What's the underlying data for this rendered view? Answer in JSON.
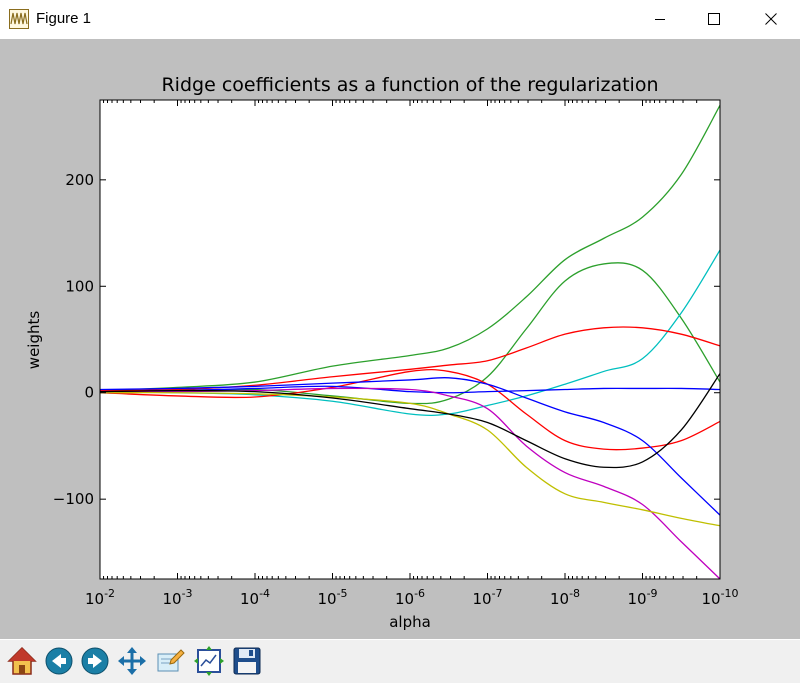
{
  "window": {
    "title": "Figure 1",
    "icons": {
      "app": "waveform-icon",
      "minimize": "minimize-icon",
      "maximize": "maximize-icon",
      "close": "close-icon"
    }
  },
  "toolbar": {
    "buttons": [
      {
        "name": "home-button",
        "icon": "home-icon"
      },
      {
        "name": "back-button",
        "icon": "arrow-left-icon"
      },
      {
        "name": "forward-button",
        "icon": "arrow-right-icon"
      },
      {
        "name": "pan-button",
        "icon": "move-arrows-icon"
      },
      {
        "name": "zoom-button",
        "icon": "zoom-rect-icon"
      },
      {
        "name": "subplots-button",
        "icon": "configure-subplots-icon"
      },
      {
        "name": "save-button",
        "icon": "floppy-disk-icon"
      }
    ]
  },
  "chart_data": {
    "type": "line",
    "title": "Ridge coefficients as a function of the regularization",
    "xlabel": "alpha",
    "ylabel": "weights",
    "xscale": "log",
    "x_reversed": true,
    "xlim": [
      0.01,
      1e-10
    ],
    "ylim": [
      -175,
      275
    ],
    "grid": false,
    "xticks": [
      {
        "base": "10",
        "exp": "-2",
        "value": 0.01
      },
      {
        "base": "10",
        "exp": "-3",
        "value": 0.001
      },
      {
        "base": "10",
        "exp": "-4",
        "value": 0.0001
      },
      {
        "base": "10",
        "exp": "-5",
        "value": 1e-05
      },
      {
        "base": "10",
        "exp": "-6",
        "value": 1e-06
      },
      {
        "base": "10",
        "exp": "-7",
        "value": 1e-07
      },
      {
        "base": "10",
        "exp": "-8",
        "value": 1e-08
      },
      {
        "base": "10",
        "exp": "-9",
        "value": 1e-09
      },
      {
        "base": "10",
        "exp": "-10",
        "value": 1e-10
      }
    ],
    "yticks": [
      {
        "label": "200",
        "value": 200
      },
      {
        "label": "100",
        "value": 100
      },
      {
        "label": "0",
        "value": 0
      },
      {
        "label": "−100",
        "value": -100
      }
    ],
    "x": [
      0.01,
      0.001,
      0.0001,
      1e-05,
      1e-06,
      3.16e-07,
      1e-07,
      3.16e-08,
      1e-08,
      3.16e-09,
      1e-09,
      3.16e-10,
      1e-10
    ],
    "series": [
      {
        "color": "#2ca02c",
        "values": [
          2,
          5,
          10,
          25,
          35,
          42,
          60,
          90,
          125,
          145,
          165,
          205,
          270
        ]
      },
      {
        "color": "#2ca02c",
        "values": [
          1,
          2,
          3,
          -3,
          -10,
          -6,
          15,
          60,
          105,
          121,
          115,
          70,
          10
        ]
      },
      {
        "color": "#00bfbf",
        "values": [
          1,
          0,
          -2,
          -8,
          -20,
          -20,
          -12,
          -3,
          8,
          20,
          32,
          75,
          134
        ]
      },
      {
        "color": "#ff0000",
        "values": [
          2,
          3,
          7,
          15,
          22,
          26,
          30,
          42,
          55,
          61,
          61,
          55,
          44
        ]
      },
      {
        "color": "#ff0000",
        "values": [
          0,
          -3,
          -4,
          5,
          20,
          20,
          8,
          -20,
          -45,
          -53,
          -52,
          -45,
          -27
        ]
      },
      {
        "color": "#0000ff",
        "values": [
          1,
          2,
          4,
          6,
          1,
          0,
          1,
          2,
          3,
          4,
          4,
          4,
          3
        ]
      },
      {
        "color": "#0000ff",
        "values": [
          3,
          4,
          6,
          9,
          12,
          14,
          8,
          -5,
          -18,
          -28,
          -45,
          -80,
          -115
        ]
      },
      {
        "color": "#bf00bf",
        "values": [
          0,
          1,
          2,
          4,
          3,
          -3,
          -15,
          -50,
          -75,
          -88,
          -105,
          -140,
          -175
        ]
      },
      {
        "color": "#bfbf00",
        "values": [
          0,
          0,
          -1,
          -4,
          -10,
          -20,
          -35,
          -70,
          -95,
          -103,
          -110,
          -118,
          -125
        ]
      },
      {
        "color": "#000000",
        "values": [
          1,
          2,
          1,
          -5,
          -15,
          -20,
          -28,
          -45,
          -62,
          -70,
          -65,
          -35,
          18
        ]
      }
    ]
  }
}
